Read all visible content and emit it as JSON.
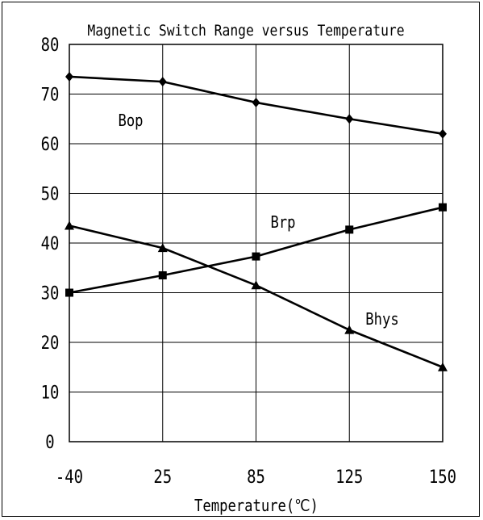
{
  "chart_data": {
    "type": "line",
    "title": "Magnetic Switch Range versus Temperature",
    "xlabel": "Temperature(℃)",
    "ylabel": "",
    "categories": [
      "-40",
      "25",
      "85",
      "125",
      "150"
    ],
    "ylim": [
      0,
      80
    ],
    "yticks": [
      "0",
      "10",
      "20",
      "30",
      "40",
      "50",
      "60",
      "70",
      "80"
    ],
    "grid": true,
    "legend": "inline labels",
    "series": [
      {
        "name": "Bop",
        "marker": "diamond",
        "values": [
          73.5,
          72.5,
          68.3,
          65.0,
          62.0
        ]
      },
      {
        "name": "Brp",
        "marker": "square",
        "values": [
          30.0,
          33.5,
          37.3,
          42.7,
          47.2
        ]
      },
      {
        "name": "Bhys",
        "marker": "triangle",
        "values": [
          43.5,
          39.0,
          31.5,
          22.5,
          15.0
        ]
      }
    ],
    "colors": {
      "line": "#000000",
      "grid": "#000000",
      "background": "#ffffff"
    }
  }
}
